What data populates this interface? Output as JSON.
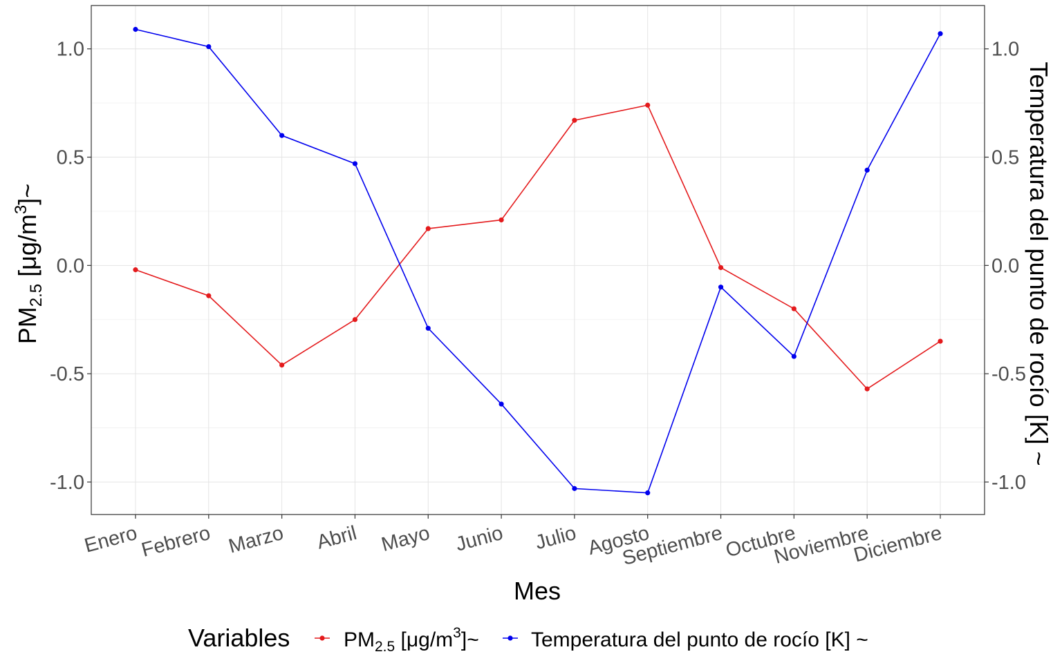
{
  "chart_data": {
    "type": "line",
    "categories": [
      "Enero",
      "Febrero",
      "Marzo",
      "Abril",
      "Mayo",
      "Junio",
      "Julio",
      "Agosto",
      "Septiembre",
      "Octubre",
      "Noviembre",
      "Diciembre"
    ],
    "series": [
      {
        "name_base": "PM",
        "name_sub": "2.5",
        "name_unit_pre": " [μg/m",
        "name_sup": "3",
        "name_unit_post": "]~",
        "color": "#e41a1c",
        "values": [
          -0.02,
          -0.14,
          -0.46,
          -0.25,
          0.17,
          0.21,
          0.67,
          0.74,
          -0.01,
          -0.2,
          -0.57,
          -0.35
        ]
      },
      {
        "name": "Temperatura del punto de rocío [K] ~",
        "color": "#0000ee",
        "values": [
          1.09,
          1.01,
          0.6,
          0.47,
          -0.29,
          -0.64,
          -1.03,
          -1.05,
          -0.1,
          -0.42,
          0.44,
          1.07
        ]
      }
    ],
    "xlabel": "Mes",
    "ylabel_left": {
      "base": "PM",
      "sub": "2.5",
      "pre": " [μg/m",
      "sup": "3",
      "post": "]~"
    },
    "ylabel_right": "Temperatura del punto de rocío [K] ~",
    "ylim": [
      -1.15,
      1.2
    ],
    "yticks": [
      -1.0,
      -0.5,
      0.0,
      0.5,
      1.0
    ],
    "ytick_labels": [
      "-1.0",
      "-0.5",
      "0.0",
      "0.5",
      "1.0"
    ],
    "grid": true,
    "legend": {
      "title": "Variables",
      "placement": "bottom"
    }
  }
}
